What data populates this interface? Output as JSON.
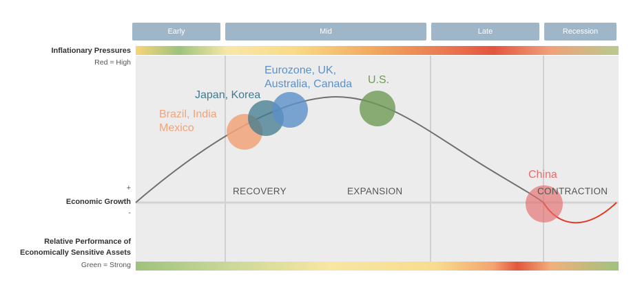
{
  "phases": [
    {
      "label": "Early"
    },
    {
      "label": "Mid"
    },
    {
      "label": "Late"
    },
    {
      "label": "Recession"
    }
  ],
  "left_labels": {
    "inflation_title": "Inflationary Pressures",
    "inflation_note": "Red = High",
    "plus": "+",
    "growth": "Economic Growth",
    "minus": "-",
    "performance_line1": "Relative Performance of",
    "performance_line2": "Economically Sensitive Assets",
    "performance_note": "Green = Strong"
  },
  "areas": {
    "recovery": "RECOVERY",
    "expansion": "EXPANSION",
    "contraction": "CONTRACTION"
  },
  "regions": [
    {
      "label": "Brazil, India\nMexico",
      "color": "#f1a37a"
    },
    {
      "label": "Japan, Korea",
      "color": "#3f7a8f"
    },
    {
      "label": "Eurozone, UK,\nAustralia, Canada",
      "color": "#5b90c8"
    },
    {
      "label": "U.S.",
      "color": "#6f9a55"
    },
    {
      "label": "China",
      "color": "#e56b6b"
    }
  ],
  "colors": {
    "panel": "#ececec",
    "curve": "#707070",
    "recession_curve": "#e03a24",
    "tab": "#9fb6c9",
    "divider": "#b5b5b5",
    "heat_red": "#e3553f",
    "heat_yellow": "#f7dc8a",
    "heat_green": "#9fc27e"
  }
}
